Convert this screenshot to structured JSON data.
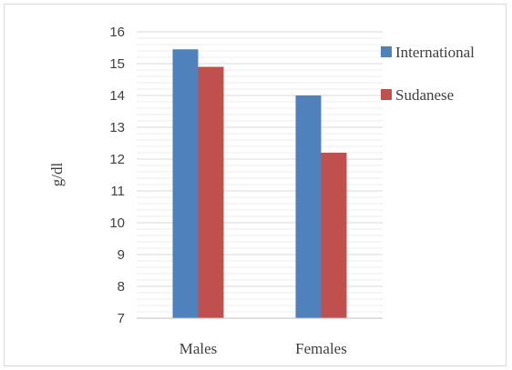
{
  "chart_data": {
    "type": "bar",
    "title": "",
    "xlabel": "",
    "ylabel": "g/dl",
    "ylim": [
      7,
      16
    ],
    "yticks": [
      7,
      8,
      9,
      10,
      11,
      12,
      13,
      14,
      15,
      16
    ],
    "minor_grid_step": 0.2,
    "grid": true,
    "legend_position": "right",
    "categories": [
      "Males",
      "Females"
    ],
    "series": [
      {
        "name": "International",
        "color": "#4F81BD",
        "values": [
          15.45,
          14.0
        ]
      },
      {
        "name": "Sudanese",
        "color": "#C0504D",
        "values": [
          14.9,
          12.2
        ]
      }
    ]
  }
}
